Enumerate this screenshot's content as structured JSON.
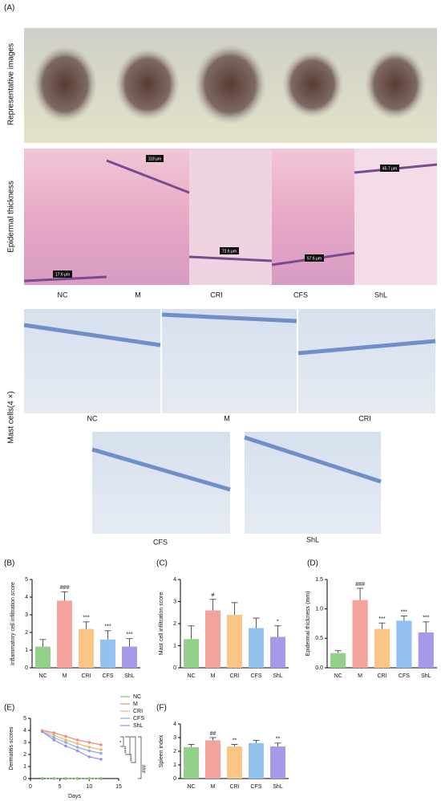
{
  "panel_a": {
    "label": "(A)",
    "row_labels": [
      "Representative images",
      "Epidermal thickness"
    ],
    "groups": [
      "NC",
      "M",
      "CRI",
      "CFS",
      "ShL"
    ],
    "scale_labels": [
      "17.6 μm",
      "118 μm",
      "72.6 μm",
      "57.6 μm",
      "45.7 μm"
    ]
  },
  "mast_cells": {
    "label": "Mast cells(4 ×)",
    "groups": [
      "NC",
      "M",
      "CRI",
      "CFS",
      "ShL"
    ]
  },
  "chart_data": [
    {
      "type": "bar",
      "panel": "(B)",
      "y_label": "Inflammatory cell infiltration score",
      "categories": [
        "NC",
        "M",
        "CRI",
        "CFS",
        "ShL"
      ],
      "colors": [
        "#93d08a",
        "#f4a29c",
        "#fbc685",
        "#93c1f0",
        "#a49ae8"
      ],
      "values": [
        1.2,
        3.8,
        2.2,
        1.6,
        1.2
      ],
      "errors": [
        0.4,
        0.5,
        0.4,
        0.5,
        0.45
      ],
      "annotations": [
        null,
        "###",
        "***",
        "***",
        "***"
      ],
      "ylim": [
        0,
        5
      ],
      "yticks": [
        0,
        1,
        2,
        3,
        4,
        5
      ]
    },
    {
      "type": "bar",
      "panel": "(C)",
      "y_label": "Mast cell infiltration score",
      "categories": [
        "NC",
        "M",
        "CRI",
        "CFS",
        "ShL"
      ],
      "colors": [
        "#93d08a",
        "#f4a29c",
        "#fbc685",
        "#93c1f0",
        "#a49ae8"
      ],
      "values": [
        1.3,
        2.6,
        2.4,
        1.8,
        1.4
      ],
      "errors": [
        0.6,
        0.5,
        0.55,
        0.45,
        0.5
      ],
      "annotations": [
        null,
        "#",
        null,
        null,
        "*"
      ],
      "ylim": [
        0,
        4
      ],
      "yticks": [
        0,
        1,
        2,
        3,
        4
      ]
    },
    {
      "type": "bar",
      "panel": "(D)",
      "y_label": "Epidermal thickness (mm)",
      "categories": [
        "NC",
        "M",
        "CRI",
        "CFS",
        "ShL"
      ],
      "colors": [
        "#93d08a",
        "#f4a29c",
        "#fbc685",
        "#93c1f0",
        "#a49ae8"
      ],
      "values": [
        0.25,
        1.15,
        0.66,
        0.8,
        0.6
      ],
      "errors": [
        0.04,
        0.2,
        0.1,
        0.08,
        0.18
      ],
      "annotations": [
        null,
        "###",
        "***",
        "***",
        "***"
      ],
      "ylim": [
        0,
        1.5
      ],
      "yticks": [
        {
          "value": 0,
          "label": "0.0"
        },
        {
          "value": 0.5,
          "label": "0.5"
        },
        {
          "value": 1,
          "label": "1.0"
        },
        {
          "value": 1.5,
          "label": "1.5"
        }
      ]
    },
    {
      "type": "line",
      "panel": "(E)",
      "y_label": "Dermatitis scores",
      "x_label": "Days",
      "x": [
        2,
        4,
        6,
        8,
        10,
        12
      ],
      "series": [
        {
          "name": "NC",
          "color": "#7cc46e",
          "values": [
            0,
            0,
            0,
            0,
            0,
            0
          ]
        },
        {
          "name": "M",
          "color": "#f08a82",
          "values": [
            4,
            3.8,
            3.5,
            3.2,
            3,
            2.8
          ]
        },
        {
          "name": "CRI",
          "color": "#f6b46a",
          "values": [
            4,
            3.6,
            3.2,
            2.9,
            2.6,
            2.4
          ]
        },
        {
          "name": "CFS",
          "color": "#7fb1ea",
          "values": [
            3.9,
            3.4,
            3,
            2.6,
            2.3,
            2.1
          ]
        },
        {
          "name": "ShL",
          "color": "#9a8fe6",
          "values": [
            3.9,
            3.2,
            2.7,
            2.3,
            1.8,
            1.6
          ]
        }
      ],
      "annotations": [
        "*",
        "****",
        "****",
        "###"
      ],
      "xlim": [
        0,
        15
      ],
      "xticks": [
        0,
        5,
        10,
        15
      ],
      "ylim": [
        0,
        5
      ],
      "yticks": [
        0,
        1,
        2,
        3,
        4,
        5
      ]
    },
    {
      "type": "bar",
      "panel": "(F)",
      "y_label": "Spleen index",
      "categories": [
        "NC",
        "M",
        "CRI",
        "CFS",
        "ShL"
      ],
      "colors": [
        "#93d08a",
        "#f4a29c",
        "#fbc685",
        "#93c1f0",
        "#a49ae8"
      ],
      "values": [
        2.3,
        2.8,
        2.35,
        2.6,
        2.35
      ],
      "errors": [
        0.2,
        0.2,
        0.15,
        0.2,
        0.25
      ],
      "annotations": [
        null,
        "##",
        "**",
        null,
        "**"
      ],
      "ylim": [
        0,
        4
      ],
      "yticks": [
        0,
        1,
        2,
        3,
        4
      ]
    }
  ]
}
